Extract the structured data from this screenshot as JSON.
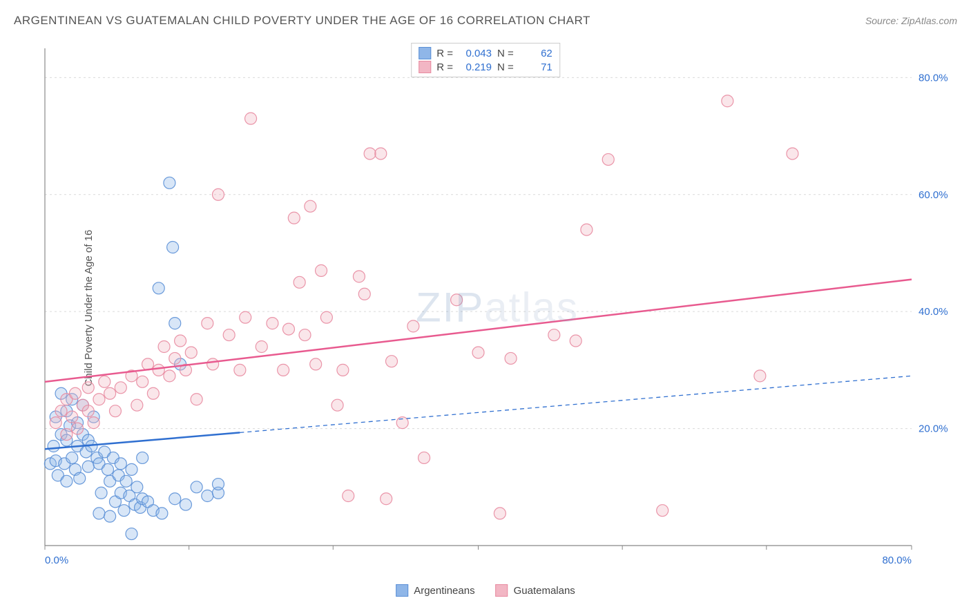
{
  "title": "ARGENTINEAN VS GUATEMALAN CHILD POVERTY UNDER THE AGE OF 16 CORRELATION CHART",
  "source_label": "Source:",
  "source_name": "ZipAtlas.com",
  "y_axis_label": "Child Poverty Under the Age of 16",
  "watermark_bold": "ZIP",
  "watermark_light": "atlas",
  "chart": {
    "type": "scatter",
    "background_color": "#ffffff",
    "grid_color": "#d9d9d9",
    "axis_color": "#888888",
    "tick_label_color": "#2f6fd0",
    "xlim": [
      0,
      80
    ],
    "ylim": [
      0,
      85
    ],
    "x_ticks": [
      0,
      13.3,
      26.6,
      40,
      53.3,
      66.6,
      80
    ],
    "x_tick_labels_visible": {
      "0": "0.0%",
      "80": "80.0%"
    },
    "y_ticks": [
      20,
      40,
      60,
      80
    ],
    "y_tick_labels": [
      "20.0%",
      "40.0%",
      "60.0%",
      "80.0%"
    ],
    "marker_radius": 8.5,
    "marker_fill_opacity": 0.35,
    "marker_stroke_opacity": 0.9,
    "marker_stroke_width": 1.2,
    "series": [
      {
        "name": "Argentineans",
        "color_fill": "#8fb6e8",
        "color_stroke": "#5a8fd6",
        "r_value": "0.043",
        "n_value": "62",
        "trendline": {
          "color": "#2f6fd0",
          "width": 2.5,
          "solid_until_x": 18,
          "y_at_x0": 16.5,
          "y_at_xmax": 29
        },
        "points": [
          [
            0.5,
            14
          ],
          [
            0.8,
            17
          ],
          [
            1,
            22
          ],
          [
            1,
            14.5
          ],
          [
            1.2,
            12
          ],
          [
            1.5,
            26
          ],
          [
            1.5,
            19
          ],
          [
            1.8,
            14
          ],
          [
            2,
            23
          ],
          [
            2,
            18
          ],
          [
            2,
            11
          ],
          [
            2.3,
            20.5
          ],
          [
            2.5,
            25
          ],
          [
            2.5,
            15
          ],
          [
            2.8,
            13
          ],
          [
            3,
            17
          ],
          [
            3,
            21
          ],
          [
            3.2,
            11.5
          ],
          [
            3.5,
            19
          ],
          [
            3.5,
            24
          ],
          [
            3.8,
            16
          ],
          [
            4,
            13.5
          ],
          [
            4,
            18
          ],
          [
            4.3,
            17
          ],
          [
            4.5,
            22
          ],
          [
            4.8,
            15
          ],
          [
            5,
            14
          ],
          [
            5,
            5.5
          ],
          [
            5.2,
            9
          ],
          [
            5.5,
            16
          ],
          [
            5.8,
            13
          ],
          [
            6,
            5
          ],
          [
            6,
            11
          ],
          [
            6.3,
            15
          ],
          [
            6.5,
            7.5
          ],
          [
            6.8,
            12
          ],
          [
            7,
            9
          ],
          [
            7,
            14
          ],
          [
            7.3,
            6
          ],
          [
            7.5,
            11
          ],
          [
            7.8,
            8.5
          ],
          [
            8,
            2
          ],
          [
            8,
            13
          ],
          [
            8.3,
            7
          ],
          [
            8.5,
            10
          ],
          [
            8.8,
            6.5
          ],
          [
            9,
            8
          ],
          [
            9,
            15
          ],
          [
            9.5,
            7.5
          ],
          [
            10,
            6
          ],
          [
            10.5,
            44
          ],
          [
            10.8,
            5.5
          ],
          [
            11.5,
            62
          ],
          [
            11.8,
            51
          ],
          [
            12,
            38
          ],
          [
            12,
            8
          ],
          [
            12.5,
            31
          ],
          [
            13,
            7
          ],
          [
            14,
            10
          ],
          [
            15,
            8.5
          ],
          [
            16,
            9
          ],
          [
            16,
            10.5
          ]
        ]
      },
      {
        "name": "Guatemalans",
        "color_fill": "#f2b6c4",
        "color_stroke": "#e88aa0",
        "r_value": "0.219",
        "n_value": "71",
        "trendline": {
          "color": "#e85a8f",
          "width": 2.5,
          "solid_until_x": 80,
          "y_at_x0": 28,
          "y_at_xmax": 45.5
        },
        "points": [
          [
            1,
            21
          ],
          [
            1.5,
            23
          ],
          [
            2,
            19
          ],
          [
            2,
            25
          ],
          [
            2.5,
            22
          ],
          [
            2.8,
            26
          ],
          [
            3,
            20
          ],
          [
            3.5,
            24
          ],
          [
            4,
            23
          ],
          [
            4,
            27
          ],
          [
            4.5,
            21
          ],
          [
            5,
            25
          ],
          [
            5.5,
            28
          ],
          [
            6,
            26
          ],
          [
            6.5,
            23
          ],
          [
            7,
            27
          ],
          [
            8,
            29
          ],
          [
            8.5,
            24
          ],
          [
            9,
            28
          ],
          [
            9.5,
            31
          ],
          [
            10,
            26
          ],
          [
            10.5,
            30
          ],
          [
            11,
            34
          ],
          [
            11.5,
            29
          ],
          [
            12,
            32
          ],
          [
            12.5,
            35
          ],
          [
            13,
            30
          ],
          [
            13.5,
            33
          ],
          [
            14,
            25
          ],
          [
            15,
            38
          ],
          [
            15.5,
            31
          ],
          [
            16,
            60
          ],
          [
            17,
            36
          ],
          [
            18,
            30
          ],
          [
            18.5,
            39
          ],
          [
            19,
            73
          ],
          [
            20,
            34
          ],
          [
            21,
            38
          ],
          [
            22,
            30
          ],
          [
            22.5,
            37
          ],
          [
            23,
            56
          ],
          [
            23.5,
            45
          ],
          [
            24,
            36
          ],
          [
            24.5,
            58
          ],
          [
            25,
            31
          ],
          [
            25.5,
            47
          ],
          [
            26,
            39
          ],
          [
            27,
            24
          ],
          [
            27.5,
            30
          ],
          [
            28,
            8.5
          ],
          [
            29,
            46
          ],
          [
            29.5,
            43
          ],
          [
            30,
            67
          ],
          [
            31,
            67
          ],
          [
            31.5,
            8
          ],
          [
            32,
            31.5
          ],
          [
            33,
            21
          ],
          [
            34,
            37.5
          ],
          [
            35,
            15
          ],
          [
            38,
            42
          ],
          [
            40,
            33
          ],
          [
            42,
            5.5
          ],
          [
            43,
            32
          ],
          [
            47,
            36
          ],
          [
            49,
            35
          ],
          [
            50,
            54
          ],
          [
            52,
            66
          ],
          [
            57,
            6
          ],
          [
            63,
            76
          ],
          [
            66,
            29
          ],
          [
            69,
            67
          ]
        ]
      }
    ]
  },
  "stats_legend": {
    "r_label": "R =",
    "n_label": "N ="
  },
  "bottom_legend_labels": [
    "Argentineans",
    "Guatemalans"
  ]
}
